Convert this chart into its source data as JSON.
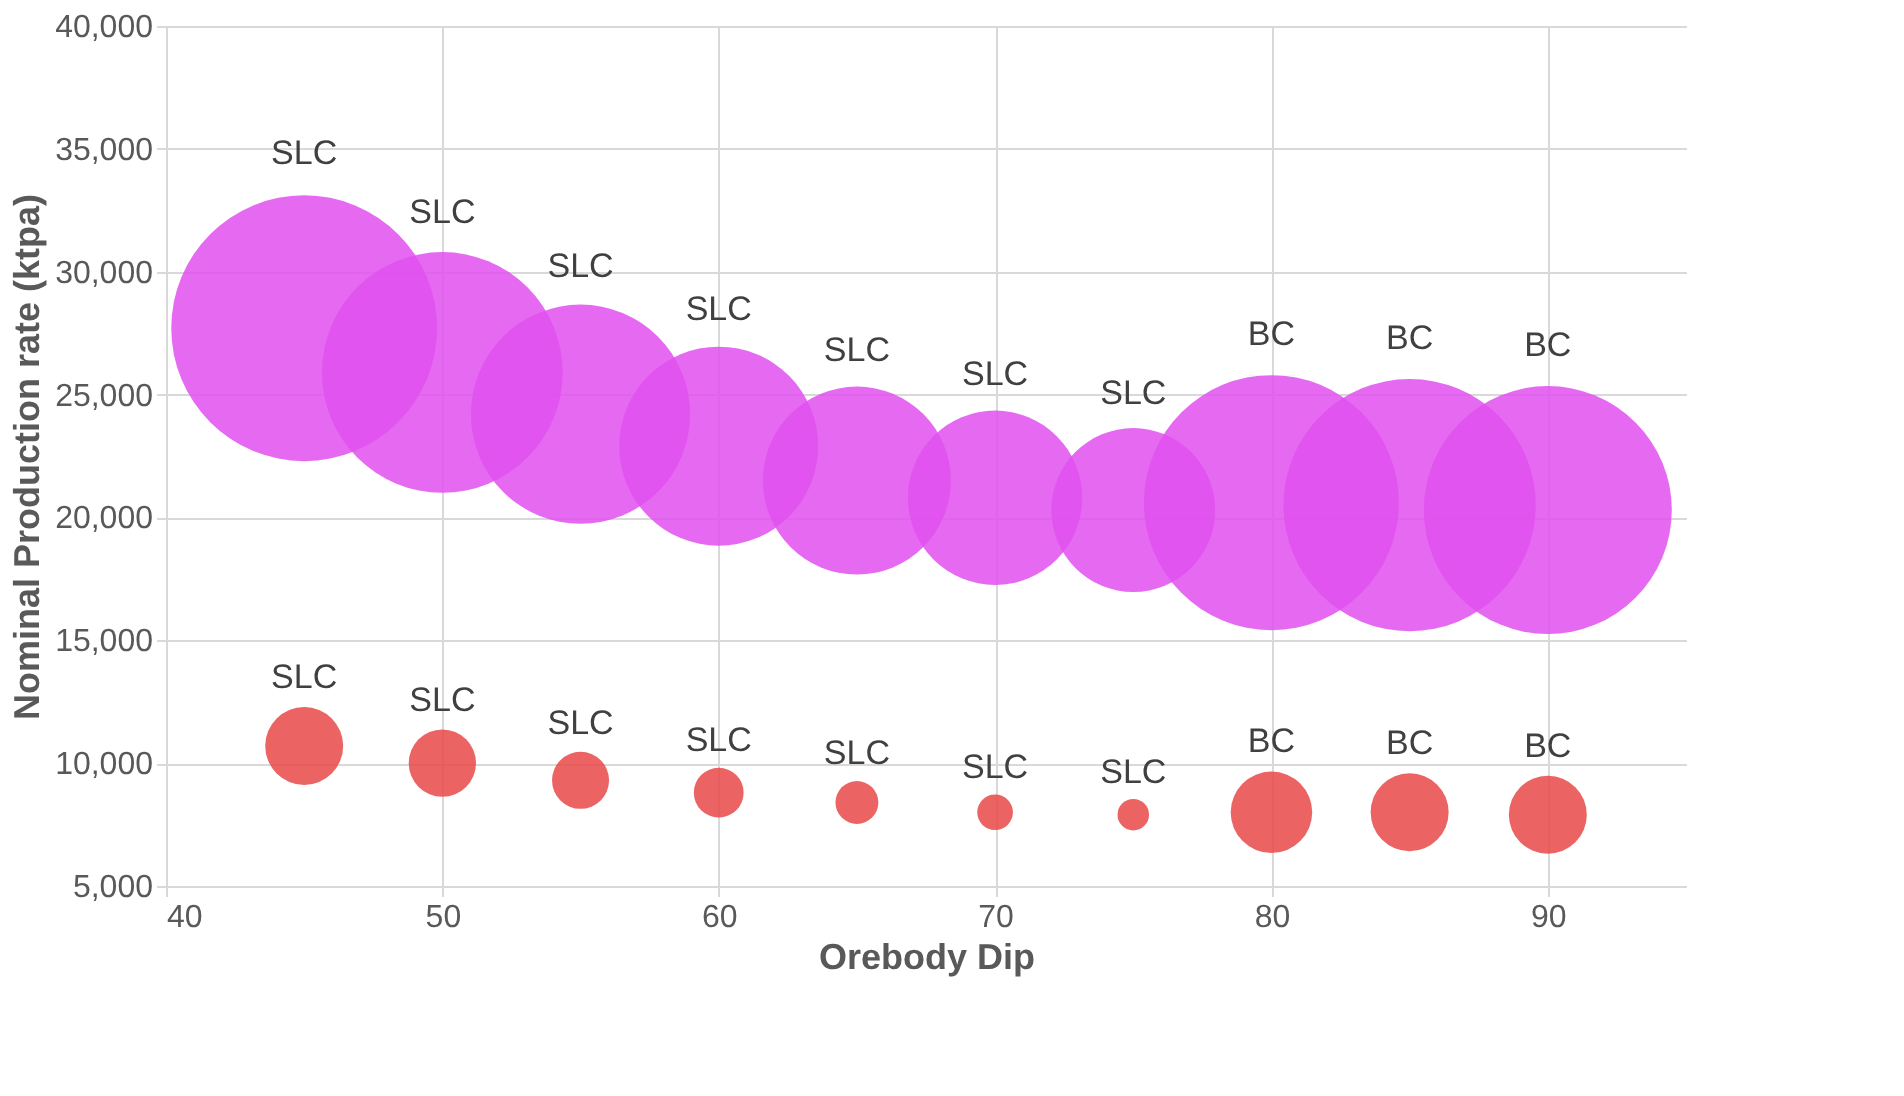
{
  "chart_data": {
    "type": "bubble",
    "xlabel": "Orebody Dip",
    "ylabel": "Nominal Production rate (ktpa)",
    "xlim": [
      40,
      95
    ],
    "xticks": [
      40,
      50,
      60,
      70,
      80,
      90
    ],
    "ylim": [
      5000,
      40000
    ],
    "yticks": [
      {
        "value": 5000,
        "label": "5,000"
      },
      {
        "value": 10000,
        "label": "10,000"
      },
      {
        "value": 15000,
        "label": "15,000"
      },
      {
        "value": 20000,
        "label": "20,000"
      },
      {
        "value": 25000,
        "label": "25,000"
      },
      {
        "value": 30000,
        "label": "30,000"
      },
      {
        "value": 35000,
        "label": "35,000"
      },
      {
        "value": 40000,
        "label": "40,000"
      }
    ],
    "grid": true,
    "legend": false,
    "series": [
      {
        "color": "#e050ee",
        "x": [
          45,
          50,
          55,
          60,
          65,
          70,
          75,
          80,
          85,
          90
        ],
        "values": [
          27700,
          25900,
          24200,
          22900,
          21500,
          20800,
          20300,
          20600,
          20500,
          20300
        ],
        "sizes": [
          1,
          0.82,
          0.68,
          0.56,
          0.5,
          0.43,
          0.38,
          0.92,
          0.9,
          0.87
        ],
        "value_labels": [
          "SLC",
          "SLC",
          "SLC",
          "SLC",
          "SLC",
          "SLC",
          "SLC",
          "BC",
          "BC",
          "BC"
        ]
      },
      {
        "color": "#e84848",
        "x": [
          45,
          50,
          55,
          60,
          65,
          70,
          75,
          80,
          85,
          90
        ],
        "values": [
          10700,
          10000,
          9300,
          8800,
          8400,
          8000,
          7900,
          8000,
          8000,
          7900
        ],
        "sizes": [
          0.086,
          0.064,
          0.046,
          0.035,
          0.026,
          0.018,
          0.014,
          0.094,
          0.086,
          0.086
        ],
        "value_labels": [
          "SLC",
          "SLC",
          "SLC",
          "SLC",
          "SLC",
          "SLC",
          "SLC",
          "BC",
          "BC",
          "BC"
        ]
      }
    ]
  }
}
